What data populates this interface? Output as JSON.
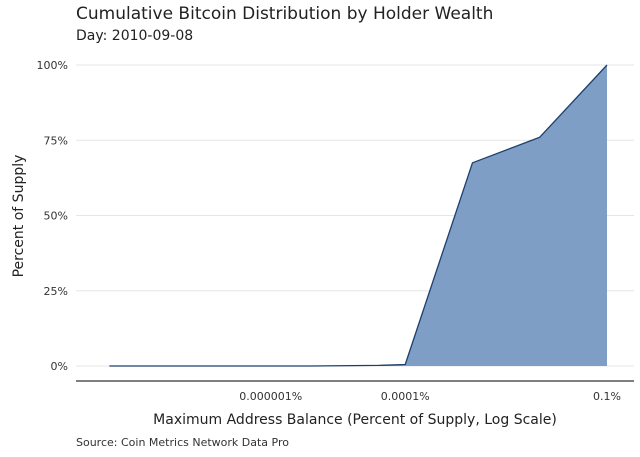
{
  "title": "Cumulative Bitcoin Distribution by Holder Wealth",
  "subtitle": "Day: 2010-09-08",
  "caption": "Source: Coin Metrics Network Data Pro",
  "colors": {
    "area_fill": "#7f9ec5",
    "line": "#1d3f6e",
    "grid": "#e6e6e6",
    "baseline": "#333333"
  },
  "chart_data": {
    "type": "area",
    "xlabel": "Maximum Address Balance (Percent of Supply, Log Scale)",
    "ylabel": "Percent of Supply",
    "x_scale": "log",
    "x_unit": "percent of supply",
    "y_unit": "percent",
    "xlim": [
      3e-09,
      0.1
    ],
    "ylim": [
      0,
      100
    ],
    "x_ticks": [
      {
        "value": 1e-06,
        "label": "0.000001%"
      },
      {
        "value": 0.0001,
        "label": "0.0001%"
      },
      {
        "value": 0.1,
        "label": "0.1%"
      }
    ],
    "y_ticks": [
      {
        "value": 0,
        "label": "0%"
      },
      {
        "value": 25,
        "label": "25%"
      },
      {
        "value": 50,
        "label": "50%"
      },
      {
        "value": 75,
        "label": "75%"
      },
      {
        "value": 100,
        "label": "100%"
      }
    ],
    "grid": true,
    "series": [
      {
        "x": [
          4e-09,
          4e-08,
          4e-07,
          4e-06,
          4e-05,
          0.0001,
          0.001,
          0.01,
          0.1
        ],
        "y": [
          0,
          0,
          0,
          0,
          0.2,
          0.5,
          67.5,
          76,
          100
        ]
      }
    ]
  }
}
